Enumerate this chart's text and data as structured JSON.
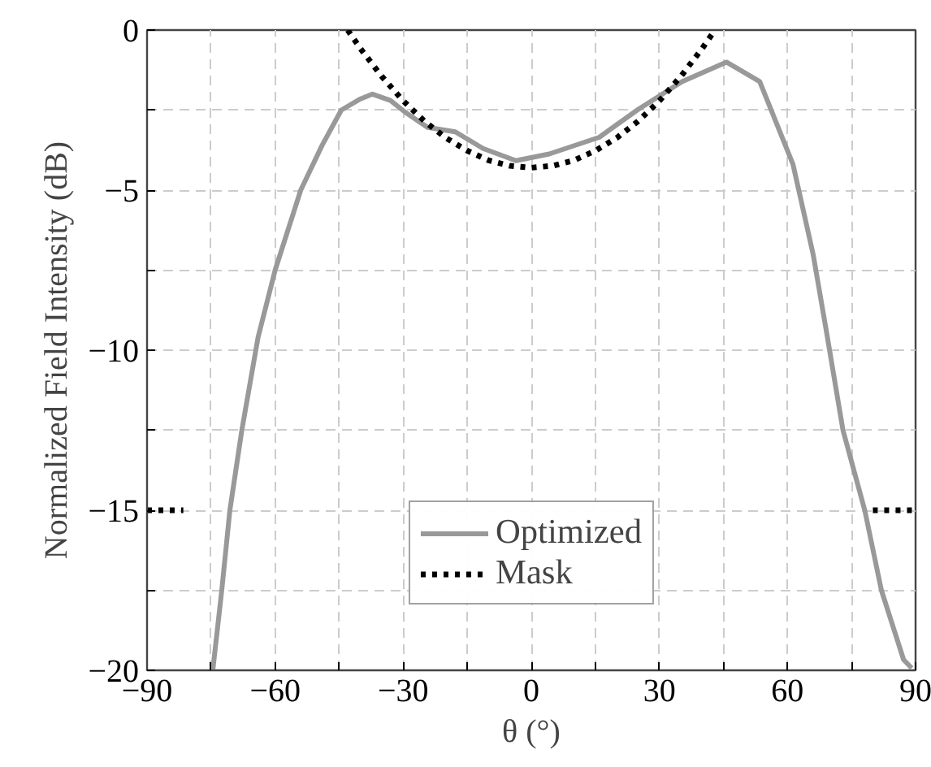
{
  "chart_data": {
    "type": "line",
    "xlabel": "θ (°)",
    "ylabel": "Normalized Field Intensity (dB)",
    "xlim": [
      -90,
      90
    ],
    "ylim": [
      -20,
      0
    ],
    "xticks": [
      -90,
      {
        "value": -75,
        "label": null
      },
      -60,
      {
        "value": -45,
        "label": null
      },
      -30,
      {
        "value": -15,
        "label": null
      },
      0,
      {
        "value": 15,
        "label": null
      },
      30,
      {
        "value": 45,
        "label": null
      },
      60,
      {
        "value": 75,
        "label": null
      },
      90
    ],
    "yticks": [
      -20,
      {
        "value": -17.5,
        "label": null
      },
      -15,
      {
        "value": -12.5,
        "label": null
      },
      -10,
      {
        "value": -7.5,
        "label": null
      },
      -5,
      {
        "value": -2.5,
        "label": null
      },
      0
    ],
    "grid": true,
    "legend": "bottom",
    "series": [
      {
        "name": "Optimized",
        "color": "#999999",
        "line_style": "solid",
        "x": [
          -74.6,
          -72.5,
          -70.6,
          -67.8,
          -64,
          -60,
          -54,
          -49,
          -44.5,
          -40,
          -37.2,
          -33,
          -29.5,
          -24.3,
          -17.8,
          -11.3,
          -3.6,
          4.2,
          15.9,
          25,
          35.3,
          45.7,
          53.5,
          61.3,
          66,
          69.1,
          73,
          78.1,
          82,
          87.2,
          89.1
        ],
        "values": [
          -20,
          -17.5,
          -15,
          -12.5,
          -9.6,
          -7.5,
          -5,
          -3.6,
          -2.5,
          -2.15,
          -2.0,
          -2.2,
          -2.57,
          -3.04,
          -3.18,
          -3.7,
          -4.08,
          -3.87,
          -3.35,
          -2.48,
          -1.61,
          -1.0,
          -1.61,
          -4.2,
          -7.0,
          -9.4,
          -12.5,
          -15,
          -17.5,
          -19.67,
          -19.93
        ]
      },
      {
        "name": "Mask",
        "color": "#000000",
        "line_style": "dotted",
        "x": [
          -90,
          -81.5,
          null,
          -43,
          -40,
          -35,
          -30,
          -25,
          -20,
          -15,
          -10,
          -5,
          0,
          5,
          10,
          15,
          20,
          25,
          30,
          35,
          40,
          43,
          null,
          80,
          90
        ],
        "values": [
          -15,
          -15,
          null,
          0,
          -0.58,
          -1.45,
          -2.21,
          -2.85,
          -3.37,
          -3.77,
          -4.07,
          -4.24,
          -4.3,
          -4.24,
          -4.07,
          -3.77,
          -3.37,
          -2.85,
          -2.21,
          -1.45,
          -0.58,
          0,
          null,
          -15,
          -15
        ]
      }
    ]
  }
}
